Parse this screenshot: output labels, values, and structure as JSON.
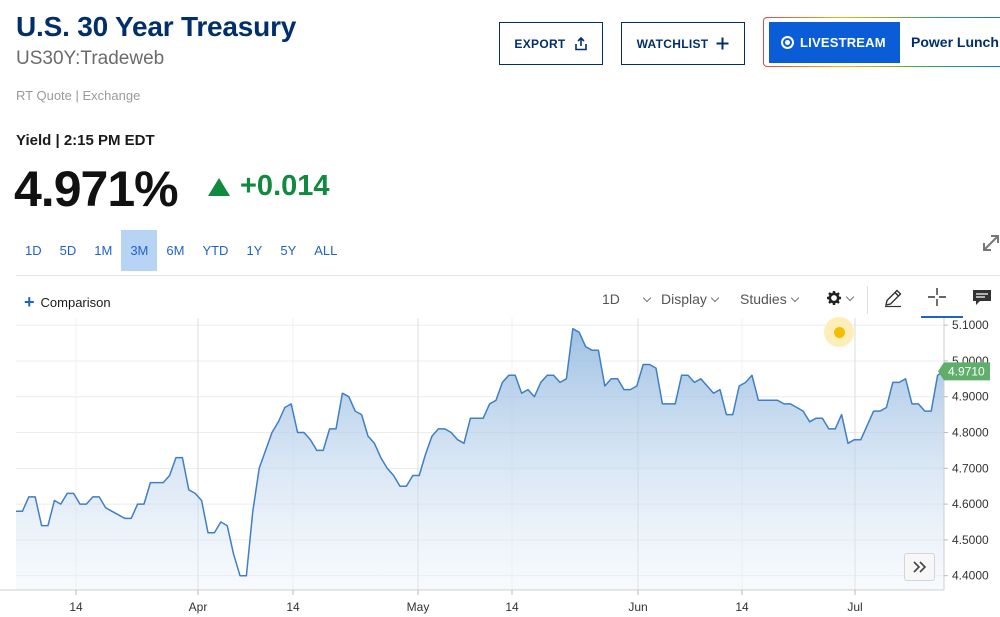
{
  "header": {
    "title": "U.S. 30 Year Treasury",
    "symbol": "US30Y:Tradeweb",
    "source": "RT Quote | Exchange"
  },
  "actions": {
    "export_label": "EXPORT",
    "watchlist_label": "WATCHLIST",
    "livestream_label": "LIVESTREAM",
    "show_label": "Power Lunch"
  },
  "quote": {
    "yield_label": "Yield | 2:15 PM EDT",
    "price": "4.971%",
    "change": "+0.014",
    "change_color": "#0f8a3e"
  },
  "ranges": {
    "items": [
      "1D",
      "5D",
      "1M",
      "3M",
      "6M",
      "YTD",
      "1Y",
      "5Y",
      "ALL"
    ],
    "active": "3M"
  },
  "toolbar": {
    "comparison_label": "Comparison",
    "interval_label": "1D",
    "display_label": "Display",
    "studies_label": "Studies",
    "icons": [
      "gear-icon",
      "pencil-icon",
      "crosshair-icon",
      "comment-icon"
    ]
  },
  "chart_data": {
    "type": "area",
    "series": [
      {
        "values": [
          4.58,
          4.58,
          4.62,
          4.62,
          4.54,
          4.54,
          4.61,
          4.6,
          4.63,
          4.63,
          4.6,
          4.6,
          4.62,
          4.62,
          4.59,
          4.58,
          4.57,
          4.56,
          4.56,
          4.6,
          4.6,
          4.66,
          4.66,
          4.66,
          4.68,
          4.73,
          4.73,
          4.64,
          4.63,
          4.61,
          4.52,
          4.52,
          4.55,
          4.54,
          4.46,
          4.4,
          4.4,
          4.58,
          4.7,
          4.75,
          4.8,
          4.83,
          4.87,
          4.88,
          4.8,
          4.8,
          4.78,
          4.75,
          4.75,
          4.81,
          4.81,
          4.91,
          4.9,
          4.86,
          4.85,
          4.79,
          4.77,
          4.73,
          4.7,
          4.68,
          4.65,
          4.65,
          4.68,
          4.68,
          4.74,
          4.79,
          4.81,
          4.81,
          4.8,
          4.78,
          4.77,
          4.84,
          4.84,
          4.84,
          4.88,
          4.89,
          4.94,
          4.96,
          4.96,
          4.91,
          4.92,
          4.9,
          4.94,
          4.96,
          4.96,
          4.94,
          4.95,
          5.09,
          5.08,
          5.04,
          5.03,
          5.03,
          4.93,
          4.95,
          4.95,
          4.92,
          4.92,
          4.93,
          4.99,
          4.99,
          4.98,
          4.88,
          4.88,
          4.88,
          4.96,
          4.96,
          4.94,
          4.95,
          4.93,
          4.91,
          4.92,
          4.85,
          4.85,
          4.93,
          4.94,
          4.96,
          4.89,
          4.89,
          4.89,
          4.89,
          4.88,
          4.88,
          4.87,
          4.86,
          4.83,
          4.84,
          4.84,
          4.81,
          4.81,
          4.85,
          4.77,
          4.78,
          4.78,
          4.82,
          4.86,
          4.86,
          4.87,
          4.94,
          4.94,
          4.95,
          4.88,
          4.88,
          4.86,
          4.86,
          4.96,
          4.971
        ]
      }
    ],
    "x_tick_labels": [
      "14",
      "Apr",
      "14",
      "May",
      "14",
      "Jun",
      "14",
      "Jul"
    ],
    "y_ticks": [
      5.1,
      5.0,
      4.9,
      4.8,
      4.7,
      4.6,
      4.5,
      4.4
    ],
    "y_tick_labels": [
      "5.1000",
      "5.0000",
      "4.9000",
      "4.8000",
      "4.7000",
      "4.6000",
      "4.5000",
      "4.4000"
    ],
    "ylim": [
      4.36,
      5.12
    ],
    "last_value_label": "4.9710",
    "last_value_color": "#5fae6a",
    "line_color": "#3f7fc4",
    "grid": true
  }
}
